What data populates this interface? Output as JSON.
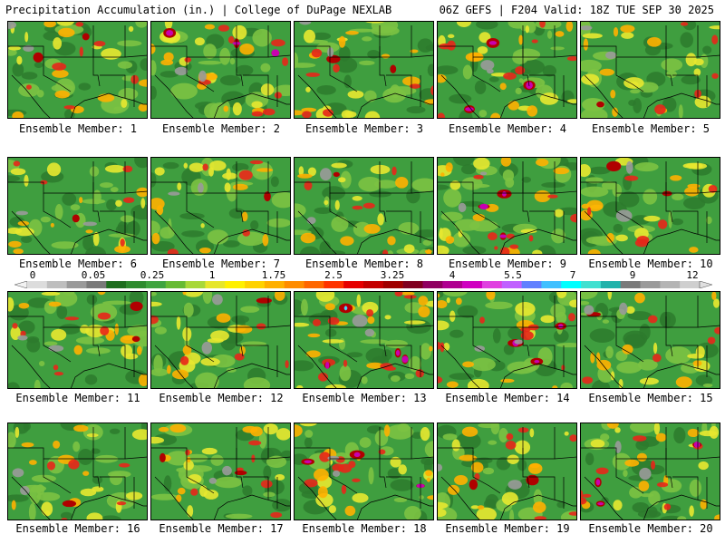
{
  "header": {
    "title": "Precipitation Accumulation (in.) | College of DuPage NEXLAB",
    "run_info": "06Z GEFS | F204 Valid: 18Z TUE SEP 30 2025"
  },
  "panels": [
    {
      "label": "Ensemble Member: 1"
    },
    {
      "label": "Ensemble Member: 2"
    },
    {
      "label": "Ensemble Member: 3"
    },
    {
      "label": "Ensemble Member: 4"
    },
    {
      "label": "Ensemble Member: 5"
    },
    {
      "label": "Ensemble Member: 6"
    },
    {
      "label": "Ensemble Member: 7"
    },
    {
      "label": "Ensemble Member: 8"
    },
    {
      "label": "Ensemble Member: 9"
    },
    {
      "label": "Ensemble Member: 10"
    },
    {
      "label": "Ensemble Member: 11"
    },
    {
      "label": "Ensemble Member: 12"
    },
    {
      "label": "Ensemble Member: 13"
    },
    {
      "label": "Ensemble Member: 14"
    },
    {
      "label": "Ensemble Member: 15"
    },
    {
      "label": "Ensemble Member: 16"
    },
    {
      "label": "Ensemble Member: 17"
    },
    {
      "label": "Ensemble Member: 18"
    },
    {
      "label": "Ensemble Member: 19"
    },
    {
      "label": "Ensemble Member: 20"
    }
  ],
  "colorbar": {
    "tick_labels": [
      "0",
      "0.05",
      "0.25",
      "1",
      "1.75",
      "2.5",
      "3.25",
      "4",
      "5.5",
      "7",
      "9",
      "12"
    ],
    "colors": [
      "#dcdcdc",
      "#bebebe",
      "#9a9a9a",
      "#7a7a7a",
      "#1e6e1e",
      "#2e8b2e",
      "#3fa43f",
      "#66bb33",
      "#a8d838",
      "#e6e62a",
      "#fff000",
      "#ffd200",
      "#ffb000",
      "#ff8c00",
      "#ff6600",
      "#ff3300",
      "#e60000",
      "#c40000",
      "#a00000",
      "#800020",
      "#900060",
      "#b00090",
      "#d000c0",
      "#e040e0",
      "#c060ff",
      "#6080ff",
      "#40c0ff",
      "#00ffff",
      "#40e0d0",
      "#20b2aa",
      "#7a7a7a",
      "#9a9a9a",
      "#b4b4b4",
      "#cfcfcf"
    ]
  },
  "map_colors": {
    "green_dark": "#2d7a2d",
    "green": "#3f9e3f",
    "green_light": "#7cc242",
    "yellow": "#e8e830",
    "orange": "#ffb000",
    "red": "#e8261a",
    "dark_red": "#b00000",
    "magenta": "#c800b0",
    "cyan": "#40e0f0",
    "gray": "#9a9a9a",
    "border": "#000000"
  }
}
